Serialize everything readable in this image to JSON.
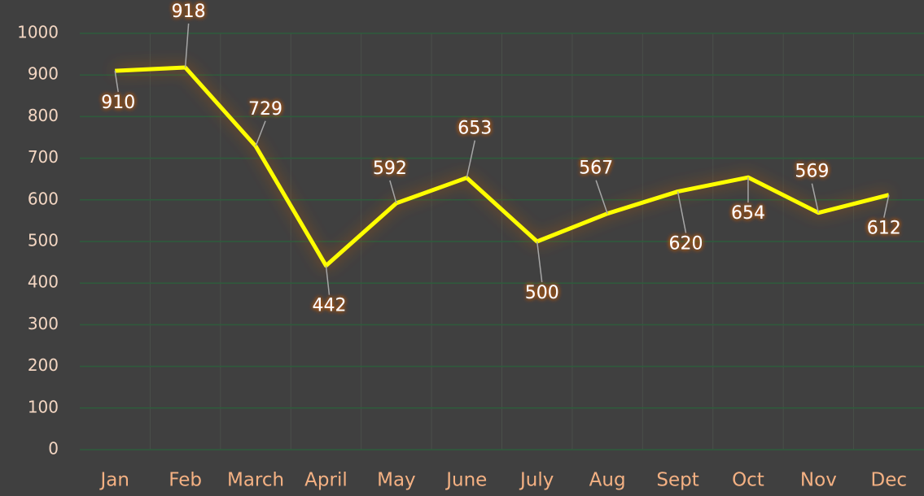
{
  "chart_data": {
    "type": "line",
    "categories": [
      "Jan",
      "Feb",
      "March",
      "April",
      "May",
      "June",
      "July",
      "Aug",
      "Sept",
      "Oct",
      "Nov",
      "Dec"
    ],
    "series": [
      {
        "color": "#ffff00",
        "values": [
          910,
          918,
          729,
          442,
          592,
          653,
          500,
          567,
          620,
          654,
          569,
          612
        ]
      }
    ],
    "ylim": [
      0,
      1000
    ],
    "yticks": [
      0,
      100,
      200,
      300,
      400,
      500,
      600,
      700,
      800,
      900,
      1000
    ],
    "grid": true,
    "data_labels": true
  }
}
